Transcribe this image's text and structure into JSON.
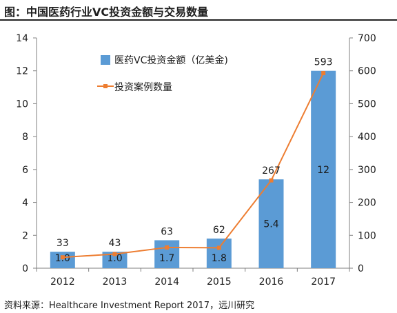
{
  "title": "图：中国医药行业VC投资金额与交易数量",
  "source": "资料来源：Healthcare Investment Report 2017，远川研究",
  "chart_data": {
    "type": "bar",
    "categories": [
      "2012",
      "2013",
      "2014",
      "2015",
      "2016",
      "2017"
    ],
    "series": [
      {
        "name": "医药VC投资金额（亿美金)",
        "type": "bar",
        "axis": "left",
        "values": [
          1.0,
          1.0,
          1.7,
          1.8,
          5.4,
          12
        ],
        "labels": [
          "1.0",
          "1.0",
          "1.7",
          "1.8",
          "5.4",
          "12"
        ],
        "color": "#5b9bd5"
      },
      {
        "name": "投资案例数量",
        "type": "line",
        "axis": "right",
        "values": [
          33,
          43,
          63,
          62,
          267,
          593
        ],
        "labels": [
          "33",
          "43",
          "63",
          "62",
          "267",
          "593"
        ],
        "color": "#ed7d31"
      }
    ],
    "y_left": {
      "min": 0,
      "max": 14,
      "ticks": [
        "0",
        "2",
        "4",
        "6",
        "8",
        "10",
        "12",
        "14"
      ]
    },
    "y_right": {
      "min": 0,
      "max": 700,
      "ticks": [
        "0",
        "100",
        "200",
        "300",
        "400",
        "500",
        "600",
        "700"
      ]
    },
    "legend_position": "top-left inside plot",
    "grid": false
  }
}
